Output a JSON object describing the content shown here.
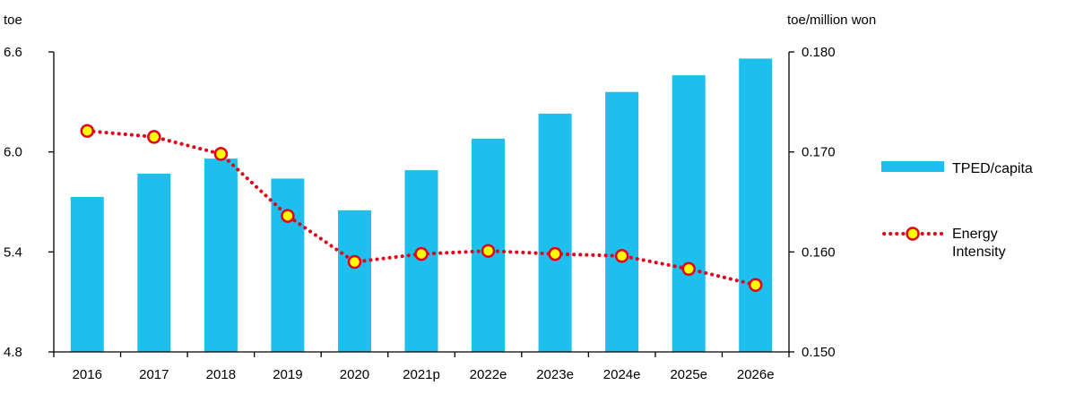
{
  "chart_data": {
    "type": "bar",
    "title": "",
    "categories": [
      "2016",
      "2017",
      "2018",
      "2019",
      "2020",
      "2021p",
      "2022e",
      "2023e",
      "2024e",
      "2025e",
      "2026e"
    ],
    "y_left": {
      "unit_label": "toe",
      "ticks": [
        "4.8",
        "5.4",
        "6.0",
        "6.6"
      ],
      "min": 4.8,
      "max": 6.6
    },
    "y_right": {
      "unit_label": "toe/million won",
      "ticks": [
        "0.150",
        "0.160",
        "0.170",
        "0.180"
      ],
      "min": 0.15,
      "max": 0.18
    },
    "series": [
      {
        "name": "TPED/capita",
        "kind": "bar",
        "axis": "left",
        "color": "#1fbfed",
        "values": [
          5.73,
          5.87,
          5.96,
          5.84,
          5.65,
          5.89,
          6.08,
          6.23,
          6.36,
          6.46,
          6.56
        ]
      },
      {
        "name": "Energy Intensity",
        "kind": "line",
        "axis": "right",
        "line_color": "#e2001a",
        "marker_fill": "#ffff00",
        "marker_edge": "#e2001a",
        "line_style": "dotted",
        "values": [
          0.1721,
          0.1715,
          0.1698,
          0.1636,
          0.159,
          0.1598,
          0.1601,
          0.1598,
          0.1596,
          0.1583,
          0.1567
        ]
      }
    ],
    "grid": false,
    "legend_position": "right"
  }
}
